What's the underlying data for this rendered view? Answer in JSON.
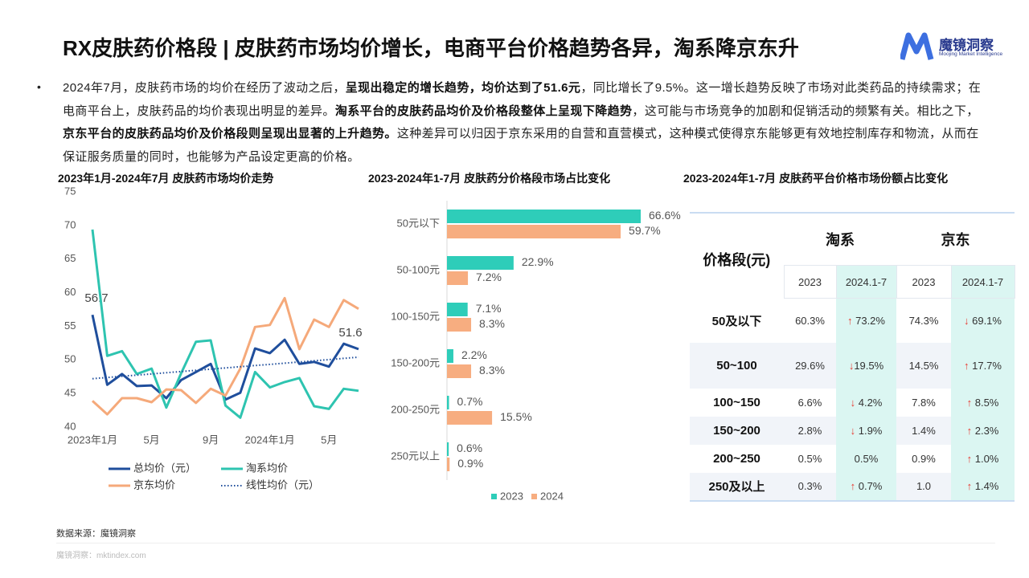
{
  "header": {
    "title": "RX皮肤药价格段 | 皮肤药市场均价增长，电商平台价格趋势各异，淘系降京东升",
    "logo": "魔镜洞察",
    "logo_sub": "Moojing Market Intelligence"
  },
  "paragraph": [
    {
      "text": "2024年7月，皮肤药市场的均价在经历了波动之后，",
      "bold": false
    },
    {
      "text": "呈现出稳定的增长趋势，均价达到了51.6元",
      "bold": true
    },
    {
      "text": "，同比增长了9.5%。这一增长趋势反映了市场对此类药品的持续需求；在电商平台上，皮肤药品的均价表现出明显的差异。",
      "bold": false
    },
    {
      "text": "淘系平台的皮肤药品均价及价格段整体上呈现下降趋势",
      "bold": true
    },
    {
      "text": "，这可能与市场竞争的加剧和促销活动的频繁有关。相比之下，",
      "bold": false
    },
    {
      "text": "京东平台的皮肤药品均价及价格段则呈现出显著的上升趋势。",
      "bold": true
    },
    {
      "text": "这种差异可以归因于京东采用的自营和直营模式，这种模式使得京东能够更有效地控制库存和物流，从而在保证服务质量的同时，也能够为产品设定更高的价格。",
      "bold": false
    }
  ],
  "chart_data": [
    {
      "type": "line",
      "title": "2023年1月-2024年7月 皮肤药市场均价走势",
      "categories": [
        "2023年1月",
        null,
        null,
        null,
        "5月",
        null,
        null,
        null,
        "9月",
        null,
        null,
        null,
        "2024年1月",
        null,
        null,
        null,
        "5月",
        null,
        null
      ],
      "ylim": [
        40,
        75
      ],
      "yticks": [
        40,
        45,
        50,
        55,
        60,
        65,
        70,
        75
      ],
      "grid": false,
      "series": [
        {
          "name": "总均价（元）",
          "color": "#1f4e9c",
          "style": "solid",
          "values": [
            56.7,
            46.3,
            47.9,
            46.1,
            46.2,
            44.3,
            47.0,
            48.2,
            49.4,
            44.1,
            45.1,
            51.7,
            51.0,
            53.0,
            49.4,
            49.7,
            49.0,
            52.4,
            51.6
          ],
          "value_labels": [
            "56.7",
            null,
            null,
            null,
            null,
            null,
            null,
            null,
            null,
            null,
            null,
            null,
            null,
            null,
            null,
            null,
            null,
            null,
            "51.6"
          ]
        },
        {
          "name": "淘系均价",
          "color": "#2ec4b0",
          "style": "solid",
          "values": [
            69.4,
            50.6,
            51.3,
            47.9,
            48.7,
            42.9,
            48.0,
            52.7,
            52.9,
            43.2,
            41.4,
            48.2,
            45.9,
            46.7,
            47.3,
            43.1,
            42.7,
            45.7,
            45.4
          ]
        },
        {
          "name": "京东均价",
          "color": "#f5a97a",
          "style": "solid",
          "values": [
            43.9,
            41.9,
            44.3,
            44.3,
            43.7,
            45.6,
            45.5,
            43.6,
            45.7,
            44.7,
            48.7,
            54.9,
            55.2,
            59.2,
            51.6,
            56.0,
            54.9,
            58.9,
            57.6
          ]
        },
        {
          "name": "线性均价（元）",
          "color": "#1f4e9c",
          "style": "dotted",
          "values": [
            47.2,
            47.38,
            47.56,
            47.73,
            47.91,
            48.09,
            48.27,
            48.44,
            48.62,
            48.8,
            48.98,
            49.16,
            49.33,
            49.51,
            49.69,
            49.87,
            50.04,
            50.22,
            50.4
          ]
        }
      ]
    },
    {
      "type": "hbar",
      "title": "2023-2024年1-7月 皮肤药分价格段市场占比变化",
      "categories": [
        "50元以下",
        "50-100元",
        "100-150元",
        "150-200元",
        "200-250元",
        "250元以上"
      ],
      "series": [
        {
          "name": "2023",
          "color": "#2ecdb9",
          "values": [
            66.6,
            22.9,
            7.1,
            2.2,
            0.7,
            0.6
          ],
          "value_labels": [
            "66.6%",
            "22.9%",
            "7.1%",
            "2.2%",
            "0.7%",
            "0.6%"
          ]
        },
        {
          "name": "2024",
          "color": "#f7ad80",
          "values": [
            59.7,
            7.2,
            8.3,
            8.3,
            15.5,
            0.9
          ],
          "value_labels": [
            "59.7%",
            "7.2%",
            "8.3%",
            "8.3%",
            "15.5%",
            "0.9%"
          ]
        }
      ]
    }
  ],
  "table": {
    "title": "2023-2024年1-7月 皮肤药平台价格市场份额占比变化",
    "corner": "价格段(元)",
    "groups": [
      "淘系",
      "京东"
    ],
    "years": [
      "2023",
      "2024.1-7",
      "2023",
      "2024.1-7"
    ],
    "rows": [
      [
        "50及以下",
        "60.3%",
        "↑ 73.2%",
        "74.3%",
        "↓ 69.1%"
      ],
      [
        "50~100",
        "29.6%",
        "↓19.5%",
        "14.5%",
        "↑ 17.7%"
      ],
      [
        "100~150",
        "6.6%",
        "↓ 4.2%",
        "7.8%",
        "↑ 8.5%"
      ],
      [
        "150~200",
        "2.8%",
        "↓ 1.9%",
        "1.4%",
        "↑ 2.3%"
      ],
      [
        "200~250",
        "0.5%",
        "0.5%",
        "0.9%",
        "↑ 1.0%"
      ],
      [
        "250及以上",
        "0.3%",
        "↑ 0.7%",
        "1.0",
        "↑ 1.4%"
      ]
    ]
  },
  "footer": {
    "source": "数据来源：魔镜洞察",
    "site": "魔镜洞察：mktindex.com"
  }
}
